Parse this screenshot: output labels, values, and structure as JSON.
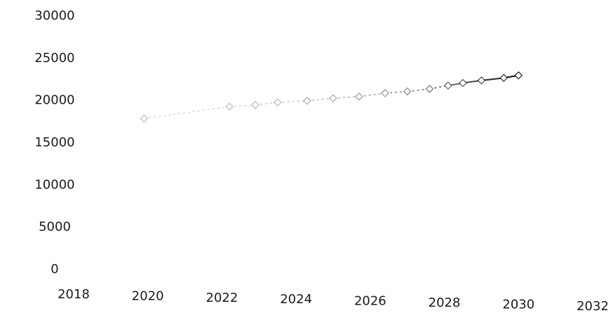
{
  "chart_data": {
    "type": "line",
    "title": "",
    "xlabel": "",
    "ylabel": "",
    "x_ticks": [
      "2018",
      "2020",
      "2022",
      "2024",
      "2026",
      "2028",
      "2030",
      "2032"
    ],
    "y_ticks": [
      "0",
      "5000",
      "10000",
      "15000",
      "20000",
      "25000",
      "30000"
    ],
    "xlim": [
      2018,
      2032
    ],
    "ylim": [
      0,
      30000
    ],
    "grid": false,
    "legend": "none",
    "series": [
      {
        "x": [
          2019.9,
          2022.2,
          2022.9,
          2023.5,
          2024.3,
          2025.0,
          2025.7,
          2026.4,
          2027.0,
          2027.6,
          2028.1,
          2028.5,
          2029.0,
          2029.6,
          2030.0
        ],
        "values": [
          17800,
          19200,
          19400,
          19700,
          19900,
          20200,
          20400,
          20800,
          21000,
          21300,
          21700,
          22000,
          22300,
          22600,
          22900
        ],
        "color": "#1a1a1a"
      }
    ]
  }
}
